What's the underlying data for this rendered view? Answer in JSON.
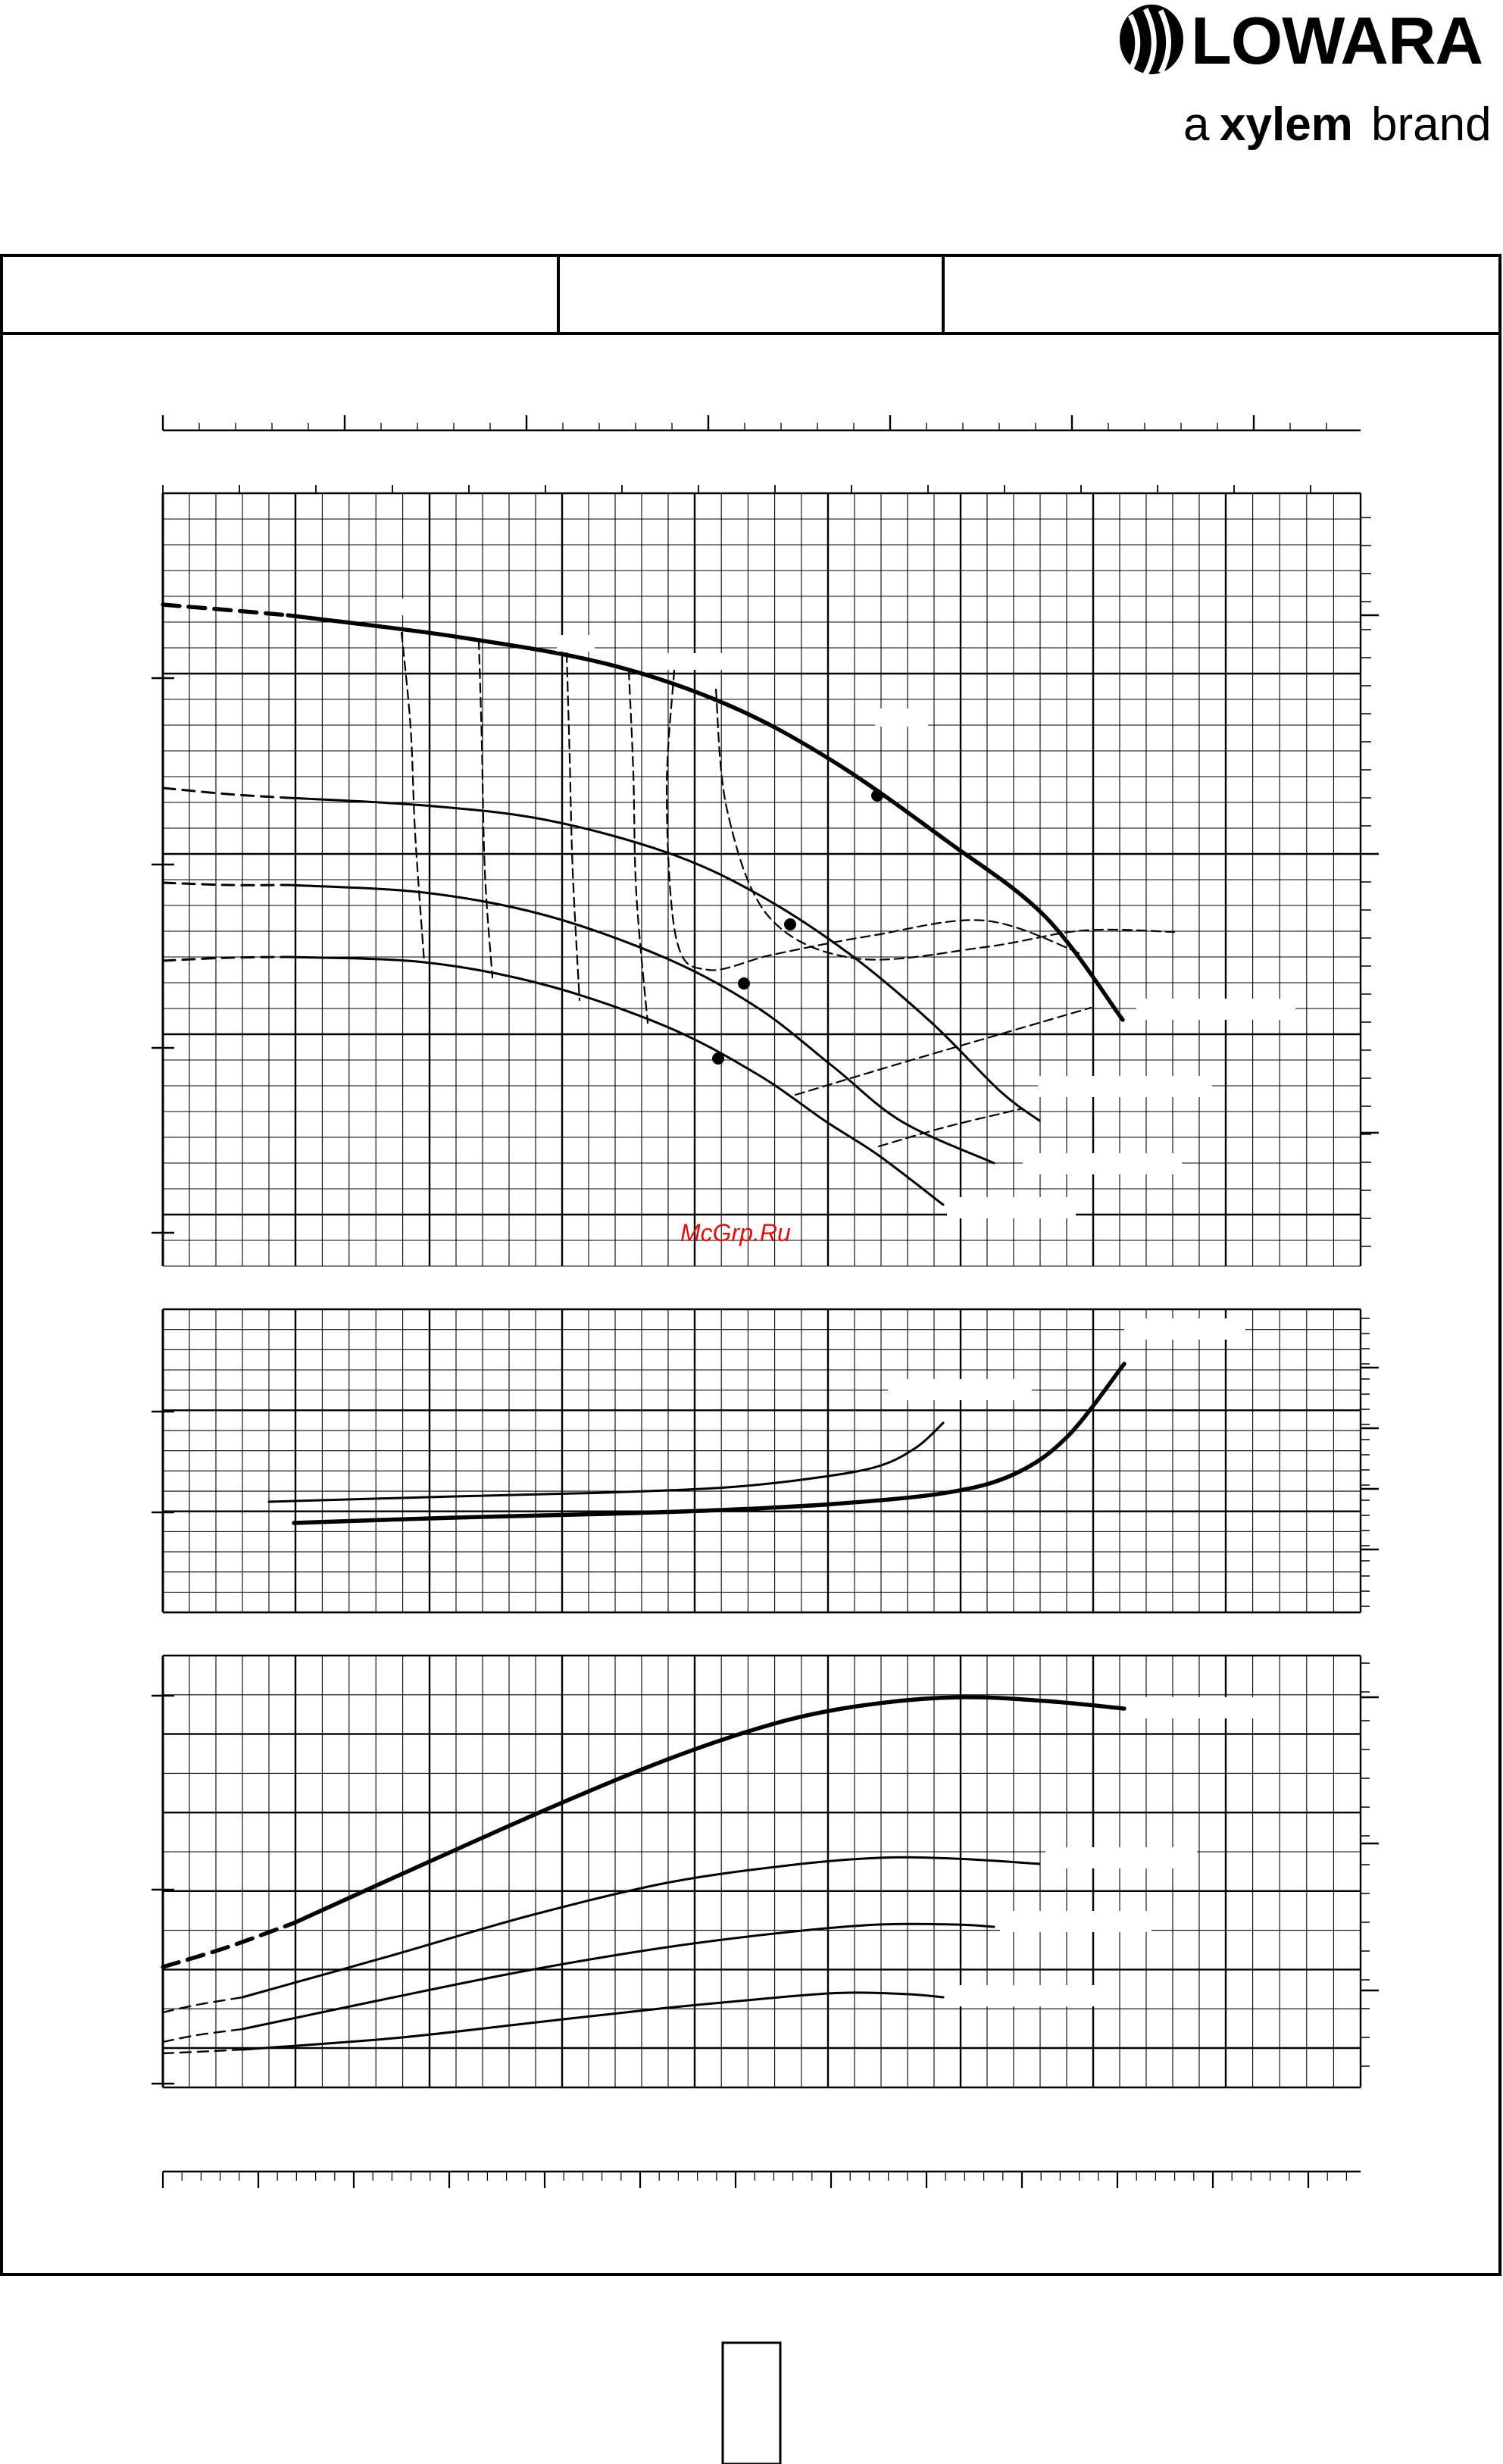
{
  "brand": {
    "name": "LOWARA",
    "tagline_a": "a",
    "tagline_b": "xylem",
    "tagline_c": "brand",
    "symbol": "lowara-drop-logo"
  },
  "header_cells": [
    "",
    "",
    ""
  ],
  "watermark": "McGrp.Ru",
  "page_number": "",
  "curve_labels_blank": true,
  "colors": {
    "ink": "#000000",
    "watermark": "#dd1111",
    "background": "#ffffff"
  },
  "chart_data": [
    {
      "type": "line",
      "panel": "head",
      "note": "axis tick labels are blank in the original",
      "series": [
        {
          "style": "bold",
          "x": [
            0,
            1,
            2,
            3,
            4,
            5,
            6,
            7
          ],
          "y": [
            89,
            86,
            83,
            77,
            67,
            52,
            35,
            12
          ]
        },
        {
          "style": "thin",
          "x": [
            0,
            1,
            2,
            3,
            4,
            5,
            6
          ],
          "y": [
            64,
            62,
            58,
            51,
            40,
            25,
            8
          ]
        },
        {
          "style": "thin",
          "x": [
            0,
            1,
            2,
            3,
            4,
            5,
            6
          ],
          "y": [
            42,
            41,
            38,
            32,
            22,
            9,
            0
          ]
        },
        {
          "style": "thin",
          "x": [
            0,
            1,
            2,
            3,
            4,
            5
          ],
          "y": [
            25,
            24,
            21,
            16,
            7,
            0
          ]
        }
      ]
    },
    {
      "type": "line",
      "panel": "npsh",
      "series": [
        {
          "style": "bold",
          "x": [
            1,
            2,
            3,
            4,
            5,
            6,
            6.5,
            7.2
          ],
          "y": [
            10,
            11,
            12,
            13,
            15,
            20,
            35,
            85
          ]
        },
        {
          "style": "thin",
          "x": [
            0.8,
            2,
            3,
            4,
            4.8,
            5.9
          ],
          "y": [
            10,
            12,
            14,
            17,
            24,
            45
          ]
        }
      ]
    },
    {
      "type": "line",
      "panel": "power",
      "series": [
        {
          "style": "bold",
          "x": [
            0,
            1,
            2,
            3,
            4,
            5,
            6,
            7.2
          ],
          "y": [
            11,
            22,
            40,
            60,
            74,
            84,
            85,
            82
          ]
        },
        {
          "style": "thin",
          "x": [
            0,
            1,
            2,
            3,
            4,
            5,
            6.6
          ],
          "y": [
            7,
            14,
            25,
            35,
            42,
            45,
            44
          ]
        },
        {
          "style": "thin",
          "x": [
            0,
            1,
            2,
            3,
            4,
            5,
            6.2
          ],
          "y": [
            4,
            9,
            15,
            22,
            27,
            29,
            29
          ]
        },
        {
          "style": "thin",
          "x": [
            0,
            1,
            2,
            3,
            4,
            5,
            5.9
          ],
          "y": [
            2,
            4,
            7,
            10,
            13,
            14,
            13
          ]
        }
      ]
    }
  ]
}
